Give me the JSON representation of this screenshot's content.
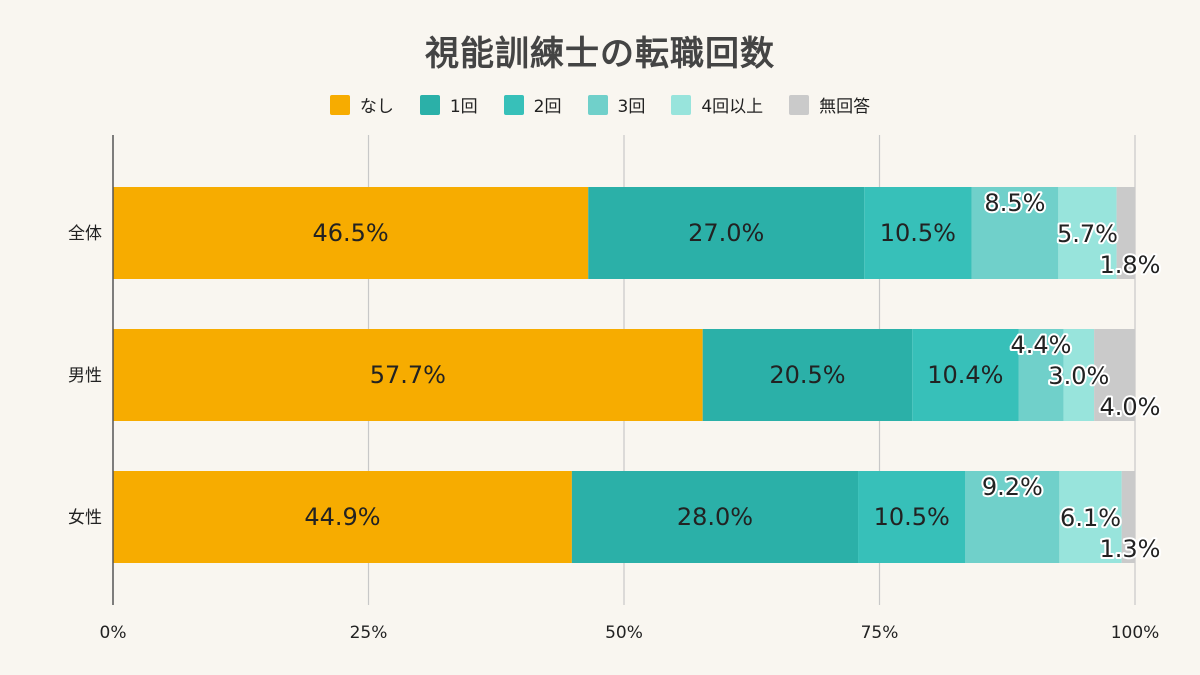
{
  "chart_data": {
    "type": "bar",
    "orientation": "horizontal",
    "stacked": true,
    "title": "視能訓練士の転職回数",
    "categories": [
      "全体",
      "男性",
      "女性"
    ],
    "series": [
      {
        "name": "なし",
        "color": "#f7ac00",
        "values": [
          46.5,
          57.7,
          44.9
        ],
        "labels": [
          "46.5%",
          "57.7%",
          "44.9%"
        ]
      },
      {
        "name": "1回",
        "color": "#2bb0a8",
        "values": [
          27.0,
          20.5,
          28.0
        ],
        "labels": [
          "27.0%",
          "20.5%",
          "28.0%"
        ]
      },
      {
        "name": "2回",
        "color": "#37c0b9",
        "values": [
          10.5,
          10.4,
          10.5
        ],
        "labels": [
          "10.5%",
          "10.4%",
          "10.5%"
        ]
      },
      {
        "name": "3回",
        "color": "#70d0ca",
        "values": [
          8.5,
          4.4,
          9.2
        ],
        "labels": [
          "8.5%",
          "4.4%",
          "9.2%"
        ]
      },
      {
        "name": "4回以上",
        "color": "#98e4dc",
        "values": [
          5.7,
          3.0,
          6.1
        ],
        "labels": [
          "5.7%",
          "3.0%",
          "6.1%"
        ]
      },
      {
        "name": "無回答",
        "color": "#cacaca",
        "values": [
          1.8,
          4.0,
          1.3
        ],
        "labels": [
          "1.8%",
          "4.0%",
          "1.3%"
        ]
      }
    ],
    "xlim": [
      0,
      100
    ],
    "xticks": [
      "0%",
      "25%",
      "50%",
      "75%",
      "100%"
    ],
    "grid": true,
    "legend_position": "top"
  }
}
